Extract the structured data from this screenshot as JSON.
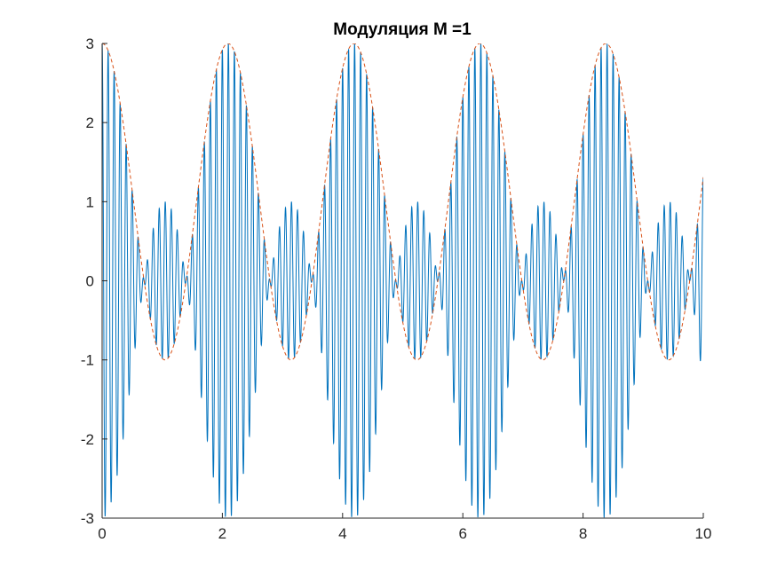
{
  "chart_data": {
    "type": "line",
    "title": "Модуляция M =1",
    "xlabel": "",
    "ylabel": "",
    "xlim": [
      0,
      10
    ],
    "ylim": [
      -3,
      3
    ],
    "xticks": [
      0,
      2,
      4,
      6,
      8,
      10
    ],
    "xtick_labels": [
      "0",
      "2",
      "4",
      "6",
      "8",
      "10"
    ],
    "yticks": [
      -3,
      -2,
      -1,
      0,
      1,
      2,
      3
    ],
    "ytick_labels": [
      "-3",
      "-2",
      "-1",
      "0",
      "1",
      "2",
      "3"
    ],
    "grid": false,
    "legend": "none",
    "series": [
      {
        "style": "solid",
        "color": "#0072BD",
        "formula": "y = (1 + 2*cos(3*t)) * cos(2*pi*10*t)",
        "x_range": [
          0,
          10
        ],
        "envelope_peak": 3,
        "envelope_trough": -1,
        "carrier_frequency": 10
      },
      {
        "style": "dashed",
        "color": "#D95319",
        "formula": "y = 1 + 2*cos(3*t)",
        "x_range": [
          0,
          10
        ]
      }
    ]
  }
}
